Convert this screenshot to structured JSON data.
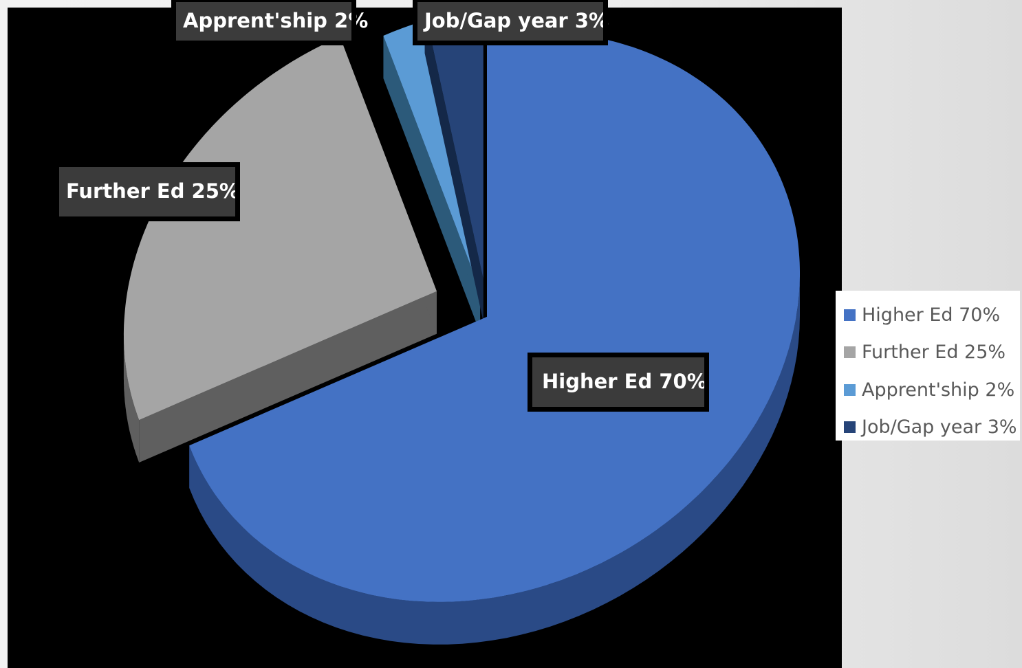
{
  "chart_data": {
    "type": "pie",
    "title": "",
    "categories": [
      "Higher Ed",
      "Further Ed",
      "Apprent'ship",
      "Job/Gap year"
    ],
    "values": [
      70,
      25,
      2,
      3
    ],
    "labels": [
      "Higher Ed 70%",
      "Further Ed 25%",
      "Apprent'ship 2%",
      "Job/Gap year 3%"
    ],
    "colors": [
      "#4472c4",
      "#a5a5a5",
      "#5b9bd5",
      "#264478"
    ],
    "side_colors": [
      "#2a4a86",
      "#5f5f5f",
      "#2c5a7a",
      "#142848"
    ],
    "legend_position": "right",
    "exploded": true,
    "three_d": true
  },
  "legend": {
    "items": [
      {
        "label": "Higher Ed 70%",
        "color": "#4472c4"
      },
      {
        "label": "Further Ed 25%",
        "color": "#a5a5a5"
      },
      {
        "label": "Apprent'ship 2%",
        "color": "#5b9bd5"
      },
      {
        "label": "Job/Gap year 3%",
        "color": "#264478"
      }
    ]
  }
}
